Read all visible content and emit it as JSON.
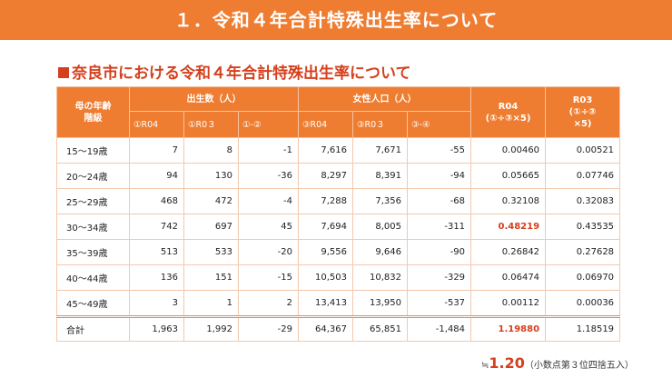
{
  "header": {
    "title": "１．令和４年合計特殊出生率について"
  },
  "section": {
    "title": "奈良市における令和４年合計特殊出生率について"
  },
  "table": {
    "headers": {
      "age_group": "母の年齢\n階級",
      "births_group": "出生数（人）",
      "female_pop_group": "女性人口（人）",
      "r04_rate": "R04\n(①÷③×5)",
      "r03_rate": "R03\n(①÷③\n×5)"
    },
    "subheaders": [
      "①R04",
      "①R0３",
      "①-②",
      "③R04",
      "③R0３",
      "③-④"
    ],
    "rows": [
      {
        "age": "15～19歳",
        "b04": "7",
        "b03": "8",
        "bd": "-1",
        "p04": "7,616",
        "p03": "7,671",
        "pd": "-55",
        "r04": "0.00460",
        "r03": "0.00521"
      },
      {
        "age": "20～24歳",
        "b04": "94",
        "b03": "130",
        "bd": "-36",
        "p04": "8,297",
        "p03": "8,391",
        "pd": "-94",
        "r04": "0.05665",
        "r03": "0.07746"
      },
      {
        "age": "25～29歳",
        "b04": "468",
        "b03": "472",
        "bd": "-4",
        "p04": "7,288",
        "p03": "7,356",
        "pd": "-68",
        "r04": "0.32108",
        "r03": "0.32083"
      },
      {
        "age": "30～34歳",
        "b04": "742",
        "b03": "697",
        "bd": "45",
        "p04": "7,694",
        "p03": "8,005",
        "pd": "-311",
        "r04": "0.48219",
        "r03": "0.43535"
      },
      {
        "age": "35～39歳",
        "b04": "513",
        "b03": "533",
        "bd": "-20",
        "p04": "9,556",
        "p03": "9,646",
        "pd": "-90",
        "r04": "0.26842",
        "r03": "0.27628"
      },
      {
        "age": "40～44歳",
        "b04": "136",
        "b03": "151",
        "bd": "-15",
        "p04": "10,503",
        "p03": "10,832",
        "pd": "-329",
        "r04": "0.06474",
        "r03": "0.06970"
      },
      {
        "age": "45～49歳",
        "b04": "3",
        "b03": "1",
        "bd": "2",
        "p04": "13,413",
        "p03": "13,950",
        "pd": "-537",
        "r04": "0.00112",
        "r03": "0.00036"
      }
    ],
    "total": {
      "age": "合計",
      "b04": "1,963",
      "b03": "1,992",
      "bd": "-29",
      "p04": "64,367",
      "p03": "65,851",
      "pd": "-1,484",
      "r04": "1.19880",
      "r03": "1.18519"
    }
  },
  "footnote": {
    "approx": "≒",
    "value": "1.20",
    "note": "（小数点第３位四捨五入）"
  },
  "colors": {
    "banner": "#ee7d31",
    "accent_red": "#d4401d",
    "border": "#f3c9ad"
  }
}
